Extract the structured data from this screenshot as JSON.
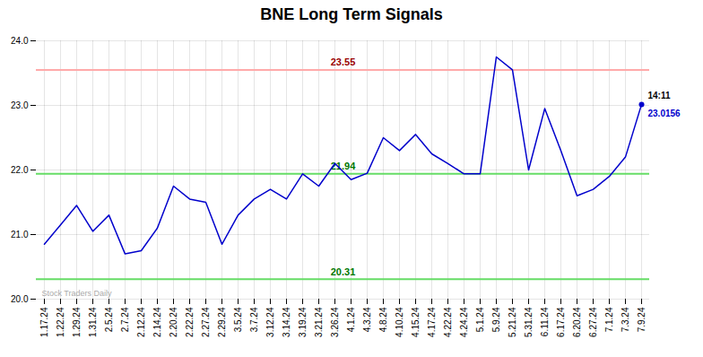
{
  "chart_data": {
    "type": "line",
    "title": "BNE Long Term Signals",
    "categories": [
      "1.17.24",
      "1.22.24",
      "1.29.24",
      "1.31.24",
      "2.5.24",
      "2.7.24",
      "2.12.24",
      "2.14.24",
      "2.20.24",
      "2.22.24",
      "2.27.24",
      "2.29.24",
      "3.5.24",
      "3.7.24",
      "3.12.24",
      "3.14.24",
      "3.19.24",
      "3.21.24",
      "3.26.24",
      "4.1.24",
      "4.3.24",
      "4.8.24",
      "4.10.24",
      "4.15.24",
      "4.17.24",
      "4.22.24",
      "4.24.24",
      "5.1.24",
      "5.9.24",
      "5.21.24",
      "5.31.24",
      "6.11.24",
      "6.17.24",
      "6.20.24",
      "6.27.24",
      "7.1.24",
      "7.3.24",
      "7.9.24"
    ],
    "values": [
      20.85,
      21.15,
      21.45,
      21.05,
      21.3,
      20.7,
      20.75,
      21.1,
      21.75,
      21.55,
      21.5,
      20.85,
      21.3,
      21.55,
      21.7,
      21.55,
      21.94,
      21.75,
      22.1,
      21.85,
      21.95,
      22.5,
      22.3,
      22.55,
      22.25,
      22.1,
      21.94,
      21.94,
      23.75,
      23.55,
      22.0,
      22.95,
      22.3,
      21.6,
      21.7,
      21.9,
      22.2,
      23.0156
    ],
    "color": "#0000cc",
    "ylim": [
      20,
      24
    ],
    "yticks": [
      20,
      21,
      22,
      23,
      24
    ],
    "grid": true,
    "reference_lines": [
      {
        "value": 23.55,
        "label": "23.55",
        "color": "#ffaaaa",
        "label_color": "#990000"
      },
      {
        "value": 21.94,
        "label": "21.94",
        "color": "#66dd66",
        "label_color": "#007700"
      },
      {
        "value": 20.31,
        "label": "20.31",
        "color": "#66dd66",
        "label_color": "#007700"
      }
    ],
    "annotations": [
      {
        "text": "14:11",
        "color": "#000000"
      },
      {
        "text": "23.0156",
        "color": "#0000cc"
      },
      {
        "text": "Stock Traders Daily",
        "color": "#aaaaaa"
      }
    ]
  }
}
